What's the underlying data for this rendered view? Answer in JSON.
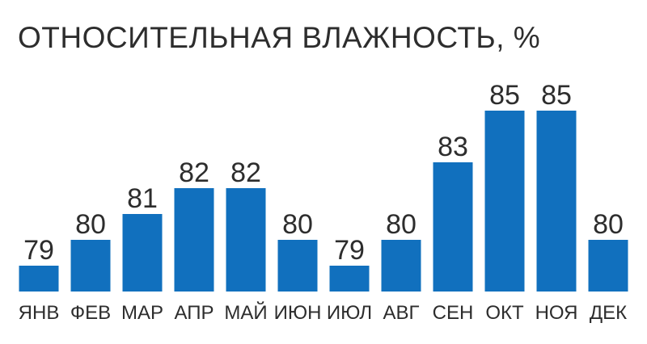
{
  "chart_data": {
    "type": "bar",
    "title": "ОТНОСИТЕЛЬНАЯ ВЛАЖНОСТЬ, %",
    "xlabel": "",
    "ylabel": "",
    "categories": [
      "ЯНВ",
      "ФЕВ",
      "МАР",
      "АПР",
      "МАЙ",
      "ИЮН",
      "ИЮЛ",
      "АВГ",
      "СЕН",
      "ОКТ",
      "НОЯ",
      "ДЕК"
    ],
    "values": [
      79,
      80,
      81,
      82,
      82,
      80,
      79,
      80,
      83,
      85,
      85,
      80
    ],
    "grid": false,
    "legend": "none",
    "axes_visible": false,
    "data_labels": true,
    "bar_color": "#1170be",
    "text_color": "#2d2d2d"
  }
}
